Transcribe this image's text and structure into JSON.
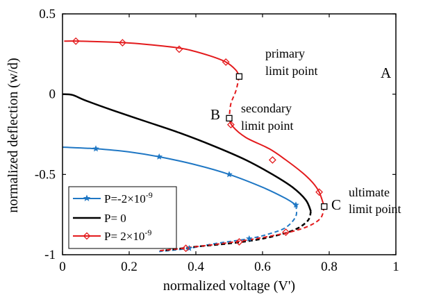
{
  "chart_data": {
    "type": "line",
    "title": "",
    "xlabel": "normalized voltage (V')",
    "ylabel": "normalized deflection (w/d)",
    "xlim": [
      0,
      1
    ],
    "ylim": [
      -1,
      0.5
    ],
    "xticks": [
      "0",
      "0.2",
      "0.4",
      "0.6",
      "0.8",
      "1"
    ],
    "yticks": [
      "0.5",
      "0",
      "-0.5",
      "-1"
    ],
    "xtick_values": [
      0,
      0.2,
      0.4,
      0.6,
      0.8,
      1
    ],
    "ytick_values": [
      0.5,
      0,
      -0.5,
      -1
    ],
    "grid": false,
    "legend_position": "bottom-left",
    "series": [
      {
        "name": "P=-2×10",
        "exponent": "-9",
        "color": "#1f77c4",
        "marker": "star",
        "stable": [
          [
            0,
            -0.33
          ],
          [
            0.1,
            -0.34
          ],
          [
            0.2,
            -0.36
          ],
          [
            0.29,
            -0.39
          ],
          [
            0.4,
            -0.44
          ],
          [
            0.5,
            -0.5
          ],
          [
            0.6,
            -0.58
          ],
          [
            0.67,
            -0.65
          ],
          [
            0.7,
            -0.69
          ]
        ],
        "unstable": [
          [
            0.7,
            -0.69
          ],
          [
            0.7,
            -0.76
          ],
          [
            0.67,
            -0.83
          ],
          [
            0.62,
            -0.87
          ],
          [
            0.56,
            -0.9
          ],
          [
            0.46,
            -0.93
          ],
          [
            0.38,
            -0.96
          ],
          [
            0.29,
            -0.98
          ]
        ],
        "markers": [
          [
            0.1,
            -0.34
          ],
          [
            0.29,
            -0.39
          ],
          [
            0.5,
            -0.5
          ],
          [
            0.7,
            -0.69
          ],
          [
            0.56,
            -0.9
          ],
          [
            0.38,
            -0.96
          ]
        ]
      },
      {
        "name": "P= 0",
        "color": "#000000",
        "marker": "none",
        "stable": [
          [
            0,
            0
          ],
          [
            0.03,
            -0.005
          ],
          [
            0.07,
            -0.04
          ],
          [
            0.15,
            -0.1
          ],
          [
            0.25,
            -0.17
          ],
          [
            0.35,
            -0.24
          ],
          [
            0.45,
            -0.32
          ],
          [
            0.55,
            -0.41
          ],
          [
            0.63,
            -0.5
          ],
          [
            0.69,
            -0.58
          ],
          [
            0.73,
            -0.66
          ],
          [
            0.745,
            -0.73
          ]
        ],
        "unstable": [
          [
            0.745,
            -0.73
          ],
          [
            0.735,
            -0.79
          ],
          [
            0.69,
            -0.85
          ],
          [
            0.6,
            -0.9
          ],
          [
            0.5,
            -0.93
          ],
          [
            0.4,
            -0.95
          ],
          [
            0.3,
            -0.975
          ]
        ],
        "markers": []
      },
      {
        "name": "P= 2×10",
        "exponent": "-9",
        "color": "#e31a1c",
        "marker": "diamond",
        "stable_upper": [
          [
            0.005,
            0.33
          ],
          [
            0.05,
            0.33
          ],
          [
            0.19,
            0.32
          ],
          [
            0.3,
            0.3
          ],
          [
            0.37,
            0.28
          ],
          [
            0.44,
            0.24
          ],
          [
            0.49,
            0.2
          ],
          [
            0.52,
            0.15
          ],
          [
            0.53,
            0.11
          ]
        ],
        "unstable_middle": [
          [
            0.53,
            0.11
          ],
          [
            0.52,
            0.02
          ],
          [
            0.505,
            -0.06
          ],
          [
            0.5,
            -0.15
          ]
        ],
        "stable_lower": [
          [
            0.5,
            -0.15
          ],
          [
            0.51,
            -0.2
          ],
          [
            0.55,
            -0.27
          ],
          [
            0.62,
            -0.34
          ],
          [
            0.67,
            -0.41
          ],
          [
            0.72,
            -0.49
          ],
          [
            0.75,
            -0.55
          ],
          [
            0.77,
            -0.61
          ],
          [
            0.785,
            -0.7
          ]
        ],
        "unstable_bottom": [
          [
            0.785,
            -0.7
          ],
          [
            0.775,
            -0.77
          ],
          [
            0.74,
            -0.82
          ],
          [
            0.68,
            -0.86
          ],
          [
            0.58,
            -0.9
          ],
          [
            0.48,
            -0.93
          ],
          [
            0.36,
            -0.96
          ],
          [
            0.29,
            -0.975
          ]
        ],
        "markers": [
          [
            0.04,
            0.33
          ],
          [
            0.18,
            0.32
          ],
          [
            0.35,
            0.28
          ],
          [
            0.49,
            0.2
          ],
          [
            0.505,
            -0.19
          ],
          [
            0.63,
            -0.41
          ],
          [
            0.77,
            -0.61
          ],
          [
            0.67,
            -0.86
          ],
          [
            0.53,
            -0.92
          ],
          [
            0.37,
            -0.96
          ]
        ]
      }
    ],
    "limit_points": [
      {
        "label": "A",
        "x": 0.53,
        "y": 0.11
      },
      {
        "label": "B",
        "x": 0.5,
        "y": -0.15
      },
      {
        "label": "C",
        "x": 0.785,
        "y": -0.7
      }
    ],
    "annotations": [
      {
        "lines": [
          "primary",
          "limit point"
        ],
        "x": 0.6,
        "y": 0.2
      },
      {
        "lines": [
          "secondary",
          "limit point"
        ],
        "x": 0.54,
        "y": -0.12
      },
      {
        "lines": [
          "ultimate",
          "limit point"
        ],
        "x": 0.86,
        "y": -0.64
      }
    ]
  }
}
